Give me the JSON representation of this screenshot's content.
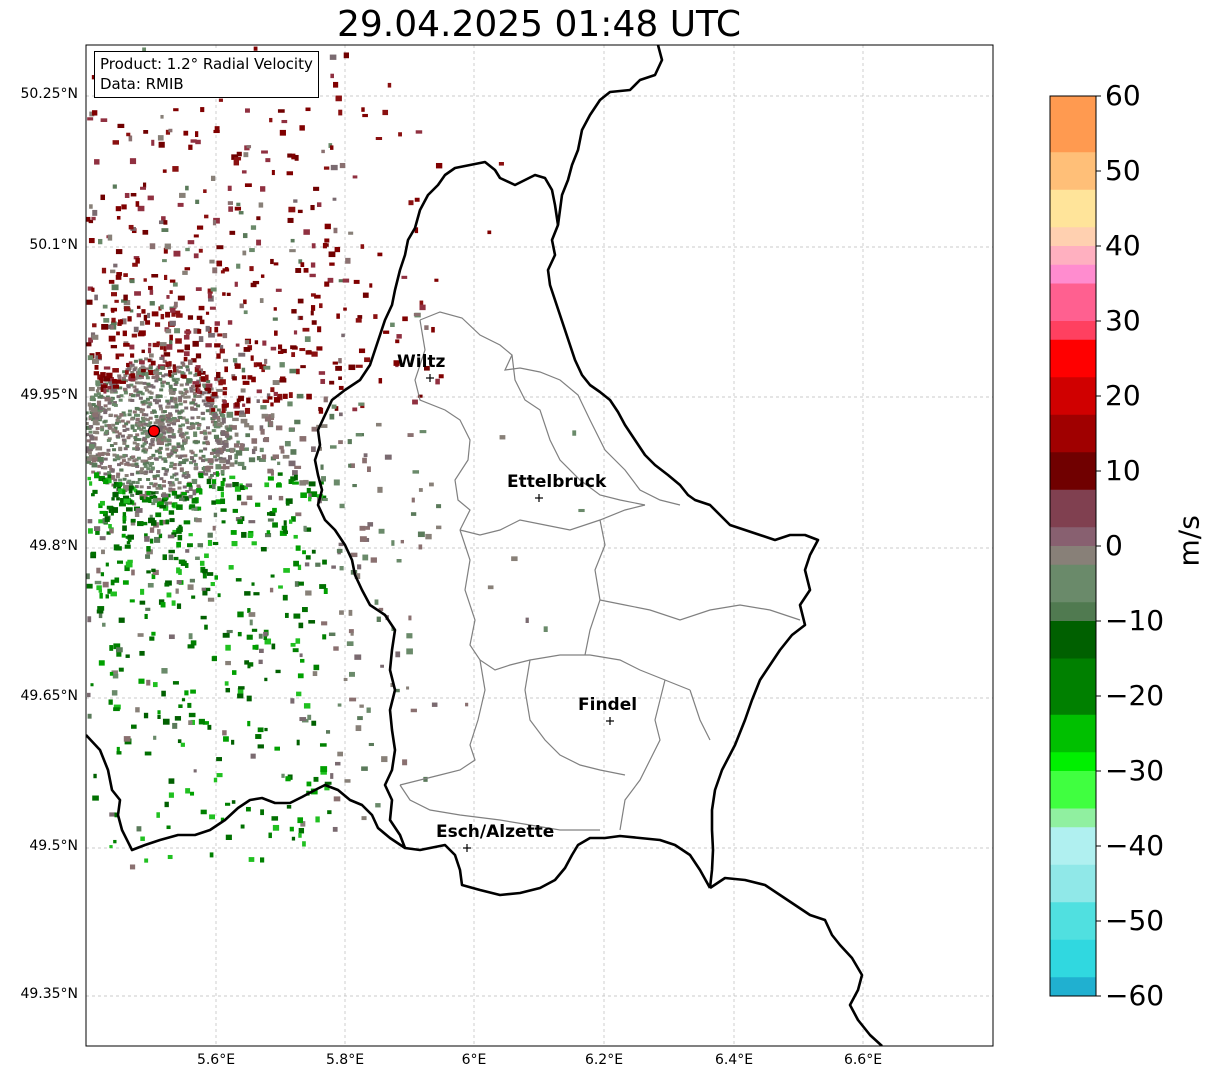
{
  "title": "29.04.2025 01:48 UTC",
  "info": {
    "product": "Product: 1.2° Radial Velocity",
    "data": "Data: RMIB"
  },
  "map": {
    "lat_ticks": [
      "50.25°N",
      "50.1°N",
      "49.95°N",
      "49.8°N",
      "49.65°N",
      "49.5°N",
      "49.35°N"
    ],
    "lon_ticks": [
      "5.6°E",
      "5.8°E",
      "6°E",
      "6.2°E",
      "6.4°E",
      "6.6°E"
    ],
    "cities": [
      {
        "name": "Wiltz"
      },
      {
        "name": "Ettelbruck"
      },
      {
        "name": "Findel"
      },
      {
        "name": "Esch/Alzette"
      }
    ],
    "radar_marker_color": "#ff0000",
    "border_color": "#000000",
    "canton_color": "#808080"
  },
  "colorbar": {
    "unit": "m/s",
    "min": -60,
    "max": 60,
    "ticks": [
      "60",
      "50",
      "40",
      "30",
      "20",
      "10",
      "0",
      "−10",
      "−20",
      "−30",
      "−40",
      "−50",
      "−60"
    ]
  }
}
